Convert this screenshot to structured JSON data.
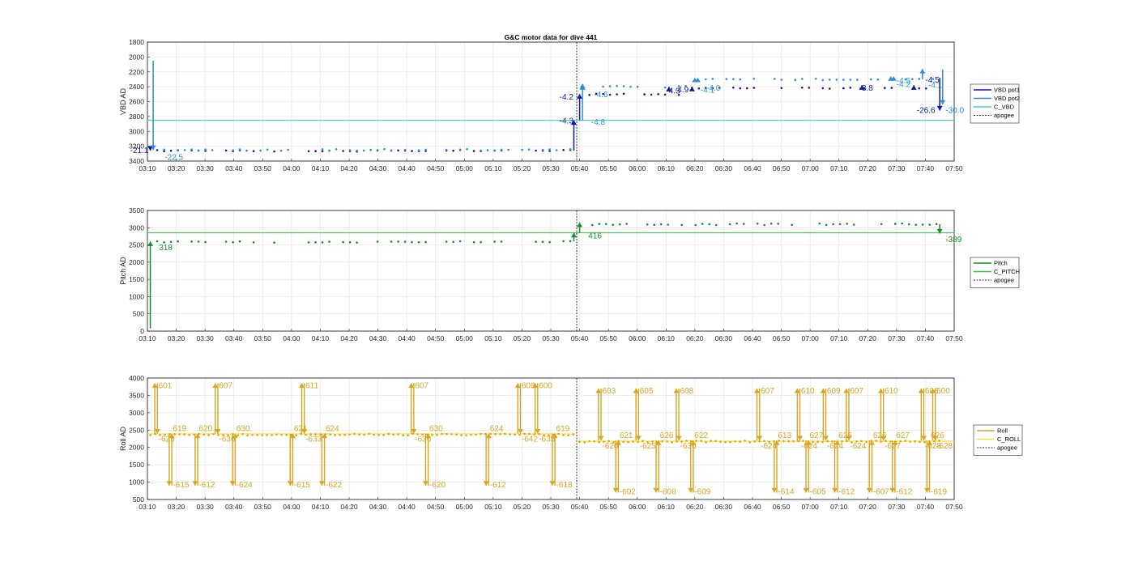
{
  "title": "G&C motor data for dive 441",
  "colors": {
    "vbd_pot1": "#0a1a9e",
    "vbd_pot2": "#2a8fd6",
    "c_vbd": "#33d0ee",
    "pitch": "#1a8a2a",
    "c_pitch": "#36c23a",
    "roll": "#d9a520",
    "c_roll": "#f2e33a",
    "apogee": "#333333"
  },
  "chart_data": [
    {
      "type": "scatter",
      "ylabel": "VBD AD",
      "y_reversed": true,
      "ylim": [
        1800,
        3400
      ],
      "yticks": [
        1800,
        2000,
        2200,
        2400,
        2600,
        2800,
        3000,
        3200,
        3400
      ],
      "xlim": [
        "03:10",
        "07:50"
      ],
      "xticks": [
        "03:10",
        "03:20",
        "03:30",
        "03:40",
        "03:50",
        "04:00",
        "04:10",
        "04:20",
        "04:30",
        "04:40",
        "04:50",
        "05:00",
        "05:10",
        "05:20",
        "05:30",
        "05:40",
        "05:50",
        "06:00",
        "06:10",
        "06:20",
        "06:30",
        "06:40",
        "06:50",
        "07:00",
        "07:10",
        "07:20",
        "07:30",
        "07:40",
        "07:50"
      ],
      "grid": true,
      "legend_position": "right",
      "legend": [
        "VBD pot1",
        "VBD pot2",
        "C_VBD",
        "apogee"
      ],
      "apogee": "05:39",
      "reference_line": {
        "name": "C_VBD",
        "y": 2850
      },
      "series": [
        {
          "name": "VBD pot1",
          "segments": [
            {
              "t": [
                "03:11",
                "05:38"
              ],
              "y": 3260
            },
            {
              "t": [
                "05:41",
                "06:19"
              ],
              "y": 2500
            },
            {
              "t": [
                "06:19",
                "07:45"
              ],
              "y": 2420
            }
          ]
        },
        {
          "name": "VBD pot2",
          "segments": [
            {
              "t": [
                "03:11",
                "05:38"
              ],
              "y": 3250
            },
            {
              "t": [
                "05:41",
                "06:19"
              ],
              "y": 2400
            },
            {
              "t": [
                "06:19",
                "07:45"
              ],
              "y": 2300
            }
          ]
        }
      ],
      "arrows": [
        {
          "series": "VBD pot1",
          "t": "03:11",
          "from": 3200,
          "to": 3260,
          "label": "-21.1",
          "label_t": "03:04",
          "label_y": 3260
        },
        {
          "series": "VBD pot2",
          "t": "03:12",
          "from": 2050,
          "to": 3250,
          "label": "-22.5",
          "label_t": "03:16",
          "label_y": 3350
        },
        {
          "series": "VBD pot1",
          "t": "05:38",
          "from": 3260,
          "to": 2850,
          "label": "-4.3",
          "label_t": "05:33",
          "label_y": 2860
        },
        {
          "series": "VBD pot1",
          "t": "05:40",
          "from": 2850,
          "to": 2500,
          "label": "-4.2",
          "label_t": "05:33",
          "label_y": 2540
        },
        {
          "series": "VBD pot2",
          "t": "05:41",
          "from": 2850,
          "to": 2380,
          "label": "-4.8",
          "label_t": "05:44",
          "label_y": 2880
        },
        {
          "series": "VBD pot2",
          "t": "05:41",
          "from": 2400,
          "to": 2380,
          "label": "-4.6",
          "label_t": "05:45",
          "label_y": 2510
        },
        {
          "series": "VBD pot1",
          "t": "06:19",
          "from": 2440,
          "to": 2400,
          "label": "-4.9",
          "label_t": "06:13",
          "label_y": 2440
        },
        {
          "series": "VBD pot1",
          "t": "06:11",
          "from": 2440,
          "to": 2400,
          "label": "-4.3",
          "label_t": "06:10",
          "label_y": 2460
        },
        {
          "series": "VBD pot2",
          "t": "06:20",
          "from": 2310,
          "to": 2300,
          "label": "-4.0",
          "label_t": "06:24",
          "label_y": 2420
        },
        {
          "series": "VBD pot2",
          "t": "06:21",
          "from": 2310,
          "to": 2300,
          "label": "-4.1",
          "label_t": "06:22",
          "label_y": 2450
        },
        {
          "series": "VBD pot1",
          "t": "07:18",
          "from": 2420,
          "to": 2380,
          "label": "-3.8",
          "label_t": "07:17",
          "label_y": 2420
        },
        {
          "series": "VBD pot2",
          "t": "07:29",
          "from": 2300,
          "to": 2280,
          "label": "-4.5",
          "label_t": "07:30",
          "label_y": 2320
        },
        {
          "series": "VBD pot2",
          "t": "07:28",
          "from": 2300,
          "to": 2280,
          "label": "-4.2",
          "label_t": "07:30",
          "label_y": 2370
        },
        {
          "series": "VBD pot1",
          "t": "07:36",
          "from": 2420,
          "to": 2380,
          "label": "-4.5",
          "label_t": "07:40",
          "label_y": 2310
        },
        {
          "series": "VBD pot2",
          "t": "07:39",
          "from": 2300,
          "to": 2160,
          "label": "-4.1",
          "label_t": "07:41",
          "label_y": 2380
        },
        {
          "series": "VBD pot1",
          "t": "07:45",
          "from": 2280,
          "to": 2720,
          "label": "-26.6",
          "label_t": "07:37",
          "label_y": 2720
        },
        {
          "series": "VBD pot2",
          "t": "07:46",
          "from": 2170,
          "to": 2640,
          "label": "-30.0",
          "label_t": "07:47",
          "label_y": 2720
        }
      ]
    },
    {
      "type": "scatter",
      "ylabel": "Pitch AD",
      "ylim": [
        0,
        3500
      ],
      "yticks": [
        0,
        500,
        1000,
        1500,
        2000,
        2500,
        3000,
        3500
      ],
      "xlim": [
        "03:10",
        "07:50"
      ],
      "xticks": [
        "03:10",
        "03:20",
        "03:30",
        "03:40",
        "03:50",
        "04:00",
        "04:10",
        "04:20",
        "04:30",
        "04:40",
        "04:50",
        "05:00",
        "05:10",
        "05:20",
        "05:30",
        "05:40",
        "05:50",
        "06:00",
        "06:10",
        "06:20",
        "06:30",
        "06:40",
        "06:50",
        "07:00",
        "07:10",
        "07:20",
        "07:30",
        "07:40",
        "07:50"
      ],
      "grid": true,
      "legend_position": "right",
      "legend": [
        "Pitch",
        "C_PITCH",
        "apogee"
      ],
      "apogee": "05:39",
      "reference_line": {
        "name": "C_PITCH",
        "y": 2850
      },
      "series": [
        {
          "name": "Pitch",
          "segments": [
            {
              "t": [
                "03:11",
                "05:37"
              ],
              "y": 2590
            },
            {
              "t": [
                "05:42",
                "07:45"
              ],
              "y": 3100
            }
          ]
        }
      ],
      "arrows": [
        {
          "series": "Pitch",
          "t": "03:11",
          "from": 80,
          "to": 2600,
          "label": "318",
          "label_t": "03:14",
          "label_y": 2420
        },
        {
          "series": "Pitch",
          "t": "05:38",
          "from": 2600,
          "to": 2850,
          "label": "",
          "label_t": "05:38",
          "label_y": 2850
        },
        {
          "series": "Pitch",
          "t": "05:40",
          "from": 2850,
          "to": 3150,
          "label": "416",
          "label_t": "05:43",
          "label_y": 2760
        },
        {
          "series": "Pitch",
          "t": "07:45",
          "from": 3100,
          "to": 2830,
          "label": "-389",
          "label_t": "07:47",
          "label_y": 2650
        }
      ]
    },
    {
      "type": "scatter",
      "ylabel": "Roll AD",
      "ylim": [
        500,
        4000
      ],
      "yticks": [
        500,
        1000,
        1500,
        2000,
        2500,
        3000,
        3500,
        4000
      ],
      "xlim": [
        "03:10",
        "07:50"
      ],
      "xticks": [
        "03:10",
        "03:20",
        "03:30",
        "03:40",
        "03:50",
        "04:00",
        "04:10",
        "04:20",
        "04:30",
        "04:40",
        "04:50",
        "05:00",
        "05:10",
        "05:20",
        "05:30",
        "05:40",
        "05:50",
        "06:00",
        "06:10",
        "06:20",
        "06:30",
        "06:40",
        "06:50",
        "07:00",
        "07:10",
        "07:20",
        "07:30",
        "07:40",
        "07:50"
      ],
      "grid": true,
      "legend_position": "right",
      "legend": [
        "Roll",
        "C_ROLL",
        "apogee"
      ],
      "apogee": "05:39",
      "c_roll_segments": [
        {
          "t": [
            "03:10",
            "05:39"
          ],
          "y": 2390
        },
        {
          "t": [
            "05:39",
            "07:50"
          ],
          "y": 2180
        }
      ],
      "series": [
        {
          "name": "Roll",
          "segments": [
            {
              "t": [
                "03:11",
                "05:38"
              ],
              "y": 2370
            },
            {
              "t": [
                "05:40",
                "07:45"
              ],
              "y": 2170
            }
          ]
        }
      ],
      "pulses": [
        {
          "t": "03:13",
          "dir": "up",
          "from": 2400,
          "to": 3850,
          "label": "601",
          "back_label": "-625"
        },
        {
          "t": "03:18",
          "dir": "down",
          "from": 2400,
          "to": 900,
          "label": "-615",
          "back_label": "619"
        },
        {
          "t": "03:27",
          "dir": "down",
          "from": 2400,
          "to": 900,
          "label": "-612",
          "back_label": "620"
        },
        {
          "t": "03:34",
          "dir": "up",
          "from": 2400,
          "to": 3850,
          "label": "607",
          "back_label": "-636"
        },
        {
          "t": "03:40",
          "dir": "down",
          "from": 2400,
          "to": 900,
          "label": "-624",
          "back_label": "630"
        },
        {
          "t": "04:00",
          "dir": "down",
          "from": 2400,
          "to": 900,
          "label": "-615",
          "back_label": "621"
        },
        {
          "t": "04:04",
          "dir": "up",
          "from": 2400,
          "to": 3850,
          "label": "611",
          "back_label": "-633"
        },
        {
          "t": "04:11",
          "dir": "down",
          "from": 2400,
          "to": 900,
          "label": "-622",
          "back_label": "624"
        },
        {
          "t": "04:42",
          "dir": "up",
          "from": 2400,
          "to": 3850,
          "label": "607",
          "back_label": "-636"
        },
        {
          "t": "04:47",
          "dir": "down",
          "from": 2400,
          "to": 900,
          "label": "-620",
          "back_label": "630"
        },
        {
          "t": "05:08",
          "dir": "down",
          "from": 2400,
          "to": 900,
          "label": "-612",
          "back_label": "624"
        },
        {
          "t": "05:19",
          "dir": "up",
          "from": 2400,
          "to": 3850,
          "label": "608",
          "back_label": "-642"
        },
        {
          "t": "05:25",
          "dir": "up",
          "from": 2400,
          "to": 3850,
          "label": "600",
          "back_label": "-635"
        },
        {
          "t": "05:31",
          "dir": "down",
          "from": 2400,
          "to": 900,
          "label": "-618",
          "back_label": "619"
        },
        {
          "t": "05:47",
          "dir": "up",
          "from": 2200,
          "to": 3700,
          "label": "603",
          "back_label": "-620"
        },
        {
          "t": "05:53",
          "dir": "down",
          "from": 2200,
          "to": 700,
          "label": "-602",
          "back_label": "621"
        },
        {
          "t": "06:00",
          "dir": "up",
          "from": 2200,
          "to": 3700,
          "label": "605",
          "back_label": "-625"
        },
        {
          "t": "06:07",
          "dir": "down",
          "from": 2200,
          "to": 700,
          "label": "-608",
          "back_label": "626"
        },
        {
          "t": "06:14",
          "dir": "up",
          "from": 2200,
          "to": 3700,
          "label": "608",
          "back_label": "-630"
        },
        {
          "t": "06:19",
          "dir": "down",
          "from": 2200,
          "to": 700,
          "label": "-609",
          "back_label": "622"
        },
        {
          "t": "06:42",
          "dir": "up",
          "from": 2200,
          "to": 3700,
          "label": "607",
          "back_label": "-624"
        },
        {
          "t": "06:48",
          "dir": "down",
          "from": 2200,
          "to": 700,
          "label": "-614",
          "back_label": "613"
        },
        {
          "t": "06:56",
          "dir": "up",
          "from": 2200,
          "to": 3700,
          "label": "610",
          "back_label": "-624"
        },
        {
          "t": "06:59",
          "dir": "down",
          "from": 2200,
          "to": 700,
          "label": "-605",
          "back_label": "627"
        },
        {
          "t": "07:05",
          "dir": "up",
          "from": 2200,
          "to": 3700,
          "label": "609",
          "back_label": "-624"
        },
        {
          "t": "07:09",
          "dir": "down",
          "from": 2200,
          "to": 700,
          "label": "-612",
          "back_label": "626"
        },
        {
          "t": "07:13",
          "dir": "up",
          "from": 2200,
          "to": 3700,
          "label": "607",
          "back_label": "-624"
        },
        {
          "t": "07:21",
          "dir": "down",
          "from": 2200,
          "to": 700,
          "label": "-607",
          "back_label": "626"
        },
        {
          "t": "07:25",
          "dir": "up",
          "from": 2200,
          "to": 3700,
          "label": "610",
          "back_label": "-627"
        },
        {
          "t": "07:29",
          "dir": "down",
          "from": 2200,
          "to": 700,
          "label": "-612",
          "back_label": "627"
        },
        {
          "t": "07:39",
          "dir": "up",
          "from": 2200,
          "to": 3700,
          "label": "606",
          "back_label": "-628"
        },
        {
          "t": "07:41",
          "dir": "down",
          "from": 2200,
          "to": 700,
          "label": "-619",
          "back_label": "626"
        },
        {
          "t": "07:43",
          "dir": "up",
          "from": 2200,
          "to": 3700,
          "label": "600",
          "back_label": "-628"
        }
      ]
    }
  ]
}
